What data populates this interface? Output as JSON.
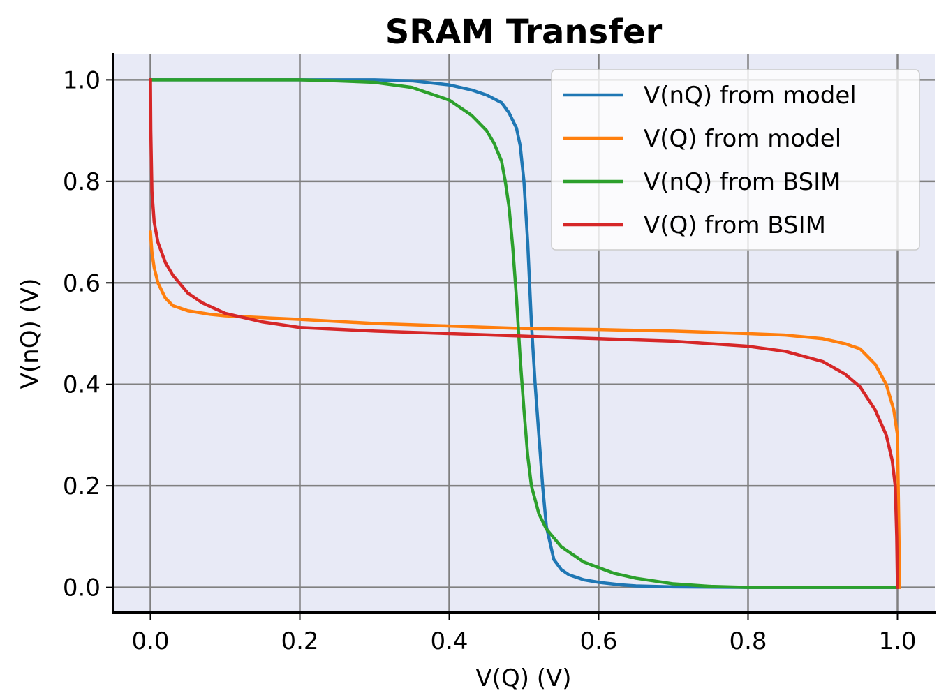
{
  "chart_data": {
    "type": "line",
    "title": "SRAM Transfer",
    "xlabel": "V(Q) (V)",
    "ylabel": "V(nQ) (V)",
    "xlim": [
      -0.05,
      1.05
    ],
    "ylim": [
      -0.05,
      1.05
    ],
    "xticks": [
      0.0,
      0.2,
      0.4,
      0.6,
      0.8,
      1.0
    ],
    "xtick_labels": [
      "0.0",
      "0.2",
      "0.4",
      "0.6",
      "0.8",
      "1.0"
    ],
    "yticks": [
      0.0,
      0.2,
      0.4,
      0.6,
      0.8,
      1.0
    ],
    "ytick_labels": [
      "0.0",
      "0.2",
      "0.4",
      "0.6",
      "0.8",
      "1.0"
    ],
    "grid": true,
    "background": "#e8eaf6",
    "grid_color": "#808080",
    "legend_position": "upper right",
    "series": [
      {
        "name": "V(nQ) from model",
        "color": "#1f77b4",
        "points": [
          [
            0.0,
            1.0
          ],
          [
            0.1,
            1.0
          ],
          [
            0.2,
            1.0
          ],
          [
            0.3,
            1.0
          ],
          [
            0.35,
            0.998
          ],
          [
            0.4,
            0.99
          ],
          [
            0.43,
            0.98
          ],
          [
            0.45,
            0.97
          ],
          [
            0.47,
            0.955
          ],
          [
            0.48,
            0.935
          ],
          [
            0.49,
            0.905
          ],
          [
            0.495,
            0.87
          ],
          [
            0.5,
            0.8
          ],
          [
            0.505,
            0.68
          ],
          [
            0.51,
            0.52
          ],
          [
            0.515,
            0.4
          ],
          [
            0.52,
            0.3
          ],
          [
            0.525,
            0.2
          ],
          [
            0.53,
            0.12
          ],
          [
            0.54,
            0.055
          ],
          [
            0.55,
            0.035
          ],
          [
            0.56,
            0.025
          ],
          [
            0.58,
            0.015
          ],
          [
            0.6,
            0.01
          ],
          [
            0.63,
            0.005
          ],
          [
            0.65,
            0.003
          ],
          [
            0.7,
            0.001
          ],
          [
            0.8,
            0.0
          ],
          [
            0.9,
            0.0
          ],
          [
            1.0,
            0.0
          ]
        ]
      },
      {
        "name": "V(Q) from model",
        "color": "#ff7f0e",
        "points": [
          [
            0.0,
            0.7
          ],
          [
            0.002,
            0.66
          ],
          [
            0.005,
            0.63
          ],
          [
            0.01,
            0.6
          ],
          [
            0.02,
            0.57
          ],
          [
            0.03,
            0.555
          ],
          [
            0.05,
            0.545
          ],
          [
            0.08,
            0.538
          ],
          [
            0.1,
            0.535
          ],
          [
            0.2,
            0.528
          ],
          [
            0.3,
            0.52
          ],
          [
            0.4,
            0.515
          ],
          [
            0.5,
            0.51
          ],
          [
            0.6,
            0.508
          ],
          [
            0.7,
            0.505
          ],
          [
            0.8,
            0.5
          ],
          [
            0.85,
            0.497
          ],
          [
            0.9,
            0.49
          ],
          [
            0.93,
            0.48
          ],
          [
            0.95,
            0.47
          ],
          [
            0.97,
            0.44
          ],
          [
            0.985,
            0.4
          ],
          [
            0.995,
            0.35
          ],
          [
            1.0,
            0.3
          ],
          [
            1.002,
            0.1
          ],
          [
            1.003,
            0.0
          ]
        ]
      },
      {
        "name": "V(nQ) from BSIM",
        "color": "#2ca02c",
        "points": [
          [
            0.0,
            1.0
          ],
          [
            0.1,
            1.0
          ],
          [
            0.2,
            1.0
          ],
          [
            0.25,
            0.998
          ],
          [
            0.3,
            0.995
          ],
          [
            0.35,
            0.985
          ],
          [
            0.4,
            0.96
          ],
          [
            0.43,
            0.93
          ],
          [
            0.45,
            0.9
          ],
          [
            0.46,
            0.875
          ],
          [
            0.47,
            0.84
          ],
          [
            0.475,
            0.8
          ],
          [
            0.48,
            0.75
          ],
          [
            0.485,
            0.67
          ],
          [
            0.49,
            0.57
          ],
          [
            0.495,
            0.45
          ],
          [
            0.5,
            0.35
          ],
          [
            0.505,
            0.26
          ],
          [
            0.51,
            0.2
          ],
          [
            0.52,
            0.145
          ],
          [
            0.53,
            0.115
          ],
          [
            0.55,
            0.08
          ],
          [
            0.58,
            0.05
          ],
          [
            0.62,
            0.028
          ],
          [
            0.65,
            0.018
          ],
          [
            0.7,
            0.007
          ],
          [
            0.75,
            0.002
          ],
          [
            0.8,
            0.0
          ],
          [
            0.9,
            0.0
          ],
          [
            1.0,
            0.0
          ]
        ]
      },
      {
        "name": "V(Q) from BSIM",
        "color": "#d62728",
        "points": [
          [
            0.0,
            1.0
          ],
          [
            0.0005,
            0.9
          ],
          [
            0.002,
            0.78
          ],
          [
            0.005,
            0.72
          ],
          [
            0.01,
            0.68
          ],
          [
            0.02,
            0.64
          ],
          [
            0.03,
            0.615
          ],
          [
            0.05,
            0.58
          ],
          [
            0.07,
            0.56
          ],
          [
            0.1,
            0.54
          ],
          [
            0.15,
            0.523
          ],
          [
            0.2,
            0.512
          ],
          [
            0.3,
            0.505
          ],
          [
            0.4,
            0.5
          ],
          [
            0.5,
            0.495
          ],
          [
            0.6,
            0.49
          ],
          [
            0.7,
            0.485
          ],
          [
            0.8,
            0.475
          ],
          [
            0.85,
            0.465
          ],
          [
            0.9,
            0.445
          ],
          [
            0.93,
            0.42
          ],
          [
            0.95,
            0.395
          ],
          [
            0.97,
            0.35
          ],
          [
            0.985,
            0.3
          ],
          [
            0.993,
            0.25
          ],
          [
            0.997,
            0.2
          ],
          [
            0.999,
            0.1
          ],
          [
            1.0,
            0.0
          ]
        ]
      }
    ]
  }
}
